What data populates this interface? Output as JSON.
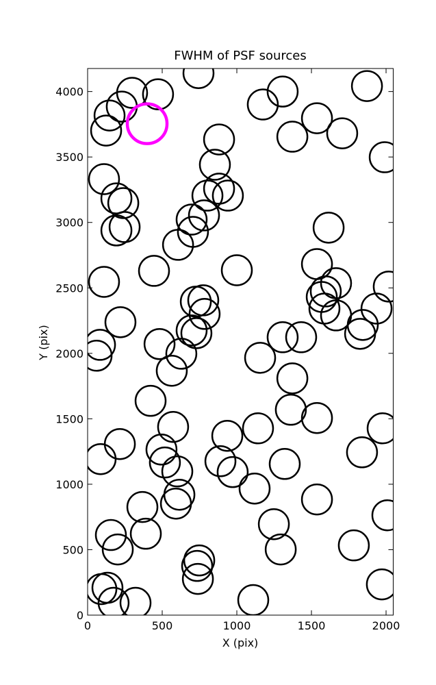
{
  "chart_data": {
    "type": "scatter",
    "title": "FWHM of PSF sources",
    "x_label": "X (pix)",
    "y_label": "Y (pix)",
    "xlim": [
      0,
      2048
    ],
    "ylim": [
      0,
      4176
    ],
    "xticks": [
      0,
      500,
      1000,
      1500,
      2000
    ],
    "yticks": [
      0,
      500,
      1000,
      1500,
      2000,
      2500,
      3000,
      3500,
      4000
    ],
    "grid": false,
    "series": [
      {
        "color": "#000000",
        "x": [
          743,
          298,
          472,
          147,
          229,
          124,
          1174,
          1307,
          1537,
          1372,
          1706,
          1872,
          1991,
          881,
          853,
          110,
          193,
          239,
          193,
          248,
          803,
          881,
          940,
          780,
          697,
          706,
          606,
          1615,
          445,
          1000,
          110,
          1537,
          1665,
          1596,
          1569,
          1587,
          1665,
          1936,
          2018,
          1844,
          1826,
          725,
          775,
          784,
          697,
          729,
          220,
          83,
          60,
          482,
          628,
          564,
          1156,
          1307,
          1431,
          1372,
          422,
          1362,
          1537,
          573,
          936,
          1142,
          1977,
          216,
          87,
          495,
          518,
          601,
          890,
          972,
          1321,
          1839,
          1119,
          615,
          592,
          367,
          1537,
          390,
          156,
          202,
          1248,
          1294,
          1784,
          2009,
          1972,
          748,
          734,
          739,
          92,
          133,
          174,
          321,
          1110
        ],
        "values": [
          4141,
          3990,
          3979,
          3817,
          3885,
          3702,
          3901,
          4000,
          3796,
          3655,
          3681,
          4042,
          3498,
          3634,
          3441,
          3331,
          3184,
          3148,
          2939,
          2965,
          3205,
          3258,
          3205,
          3054,
          3022,
          2928,
          2829,
          2960,
          2630,
          2635,
          2546,
          2682,
          2536,
          2473,
          2431,
          2342,
          2290,
          2342,
          2510,
          2217,
          2149,
          2395,
          2405,
          2301,
          2175,
          2154,
          2238,
          2065,
          1982,
          2071,
          1997,
          1867,
          1966,
          2123,
          2123,
          1809,
          1637,
          1569,
          1506,
          1438,
          1370,
          1427,
          1427,
          1307,
          1192,
          1265,
          1166,
          1098,
          1176,
          1093,
          1155,
          1244,
          967,
          920,
          852,
          826,
          884,
          622,
          612,
          502,
          695,
          502,
          533,
          763,
          235,
          418,
          376,
          277,
          199,
          209,
          94,
          94,
          115
        ]
      },
      {
        "color": "#ff00ff",
        "x": [
          399
        ],
        "values": [
          3754
        ]
      }
    ]
  }
}
